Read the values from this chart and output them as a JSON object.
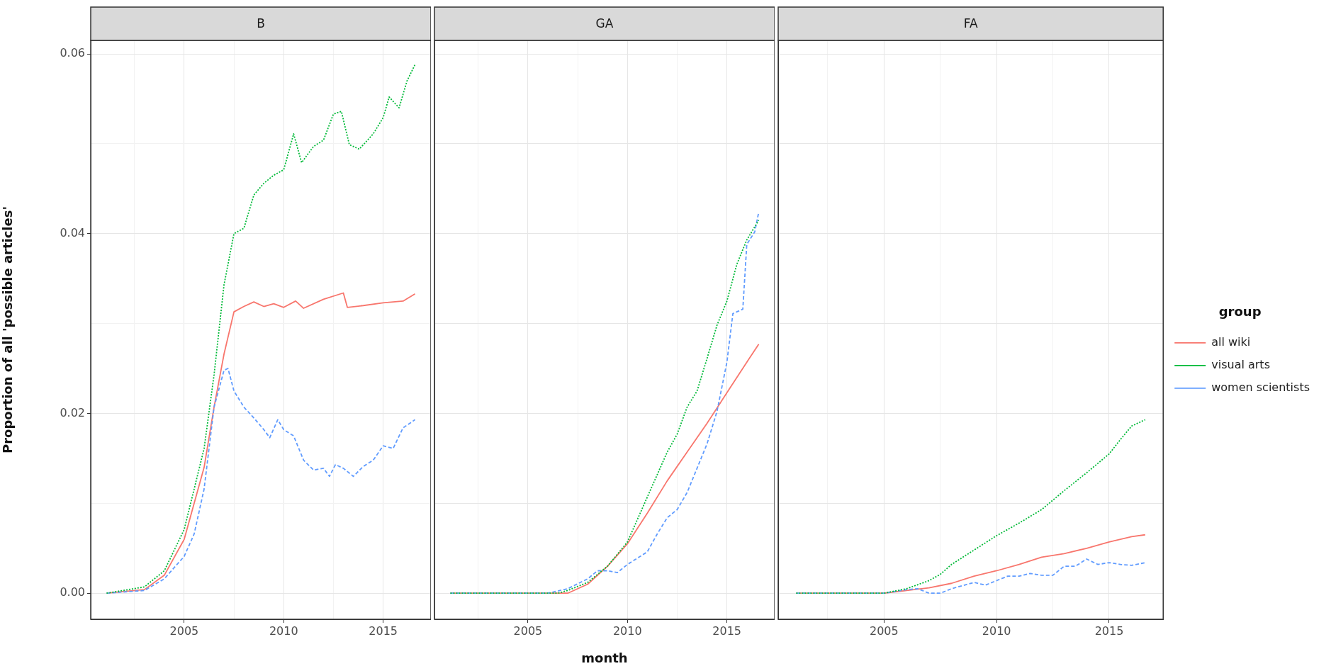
{
  "chart_data": [
    {
      "type": "line",
      "title": "B",
      "ylabel": "Proportion of all 'possible articles'",
      "xlim": [
        2000.3,
        2017.4
      ],
      "ylim": [
        -0.0029,
        0.0615
      ],
      "xticks": [
        {
          "value": 2002.5,
          "label": null
        },
        2005,
        {
          "value": 2007.5,
          "label": null
        },
        2010,
        {
          "value": 2012.5,
          "label": null
        },
        2015
      ],
      "yticks": [
        {
          "value": 0,
          "label": "0.00"
        },
        {
          "value": 0.01,
          "label": null
        },
        {
          "value": 0.02,
          "label": "0.02"
        },
        {
          "value": 0.03,
          "label": null
        },
        {
          "value": 0.04,
          "label": "0.04"
        },
        {
          "value": 0.05,
          "label": null
        },
        {
          "value": 0.06,
          "label": "0.06"
        }
      ],
      "grid": true,
      "marker": "none",
      "legend": false,
      "series": [
        {
          "color": "#f8766d",
          "line_style": "solid",
          "x": [
            2001.1,
            2003,
            2004,
            2005,
            2006,
            2006.5,
            2007,
            2007.5,
            2008,
            2008.5,
            2009,
            2009.5,
            2010,
            2010.6,
            2011,
            2012,
            2013,
            2013.2,
            2014,
            2015,
            2016,
            2016.6
          ],
          "values": [
            0,
            0.0004,
            0.002,
            0.006,
            0.014,
            0.0207,
            0.0266,
            0.0313,
            0.0319,
            0.0324,
            0.0319,
            0.0322,
            0.0318,
            0.0325,
            0.0317,
            0.0327,
            0.0334,
            0.0318,
            0.032,
            0.0323,
            0.0325,
            0.0333
          ]
        },
        {
          "color": "#00ba38",
          "line_style": "dotted",
          "x": [
            2001.1,
            2003,
            2004,
            2005,
            2006,
            2006.5,
            2007,
            2007.5,
            2008,
            2008.5,
            2009,
            2009.5,
            2010,
            2010.5,
            2010.9,
            2011.5,
            2012,
            2012.5,
            2012.9,
            2013.3,
            2013.8,
            2014.5,
            2015,
            2015.3,
            2015.8,
            2016.2,
            2016.6
          ],
          "values": [
            0,
            0.0007,
            0.0025,
            0.0071,
            0.0161,
            0.0243,
            0.0343,
            0.04,
            0.0406,
            0.0443,
            0.0456,
            0.0465,
            0.0471,
            0.0511,
            0.0479,
            0.0497,
            0.0504,
            0.0533,
            0.0536,
            0.0499,
            0.0494,
            0.0511,
            0.0529,
            0.0552,
            0.054,
            0.057,
            0.0588
          ]
        },
        {
          "color": "#619cff",
          "line_style": "dashed",
          "x": [
            2001.1,
            2003,
            2004,
            2005,
            2005.5,
            2006,
            2006.5,
            2007,
            2007.2,
            2007.5,
            2008,
            2008.5,
            2009,
            2009.3,
            2009.7,
            2010,
            2010.5,
            2011,
            2011.5,
            2012,
            2012.3,
            2012.6,
            2013,
            2013.5,
            2014,
            2014.5,
            2015,
            2015.5,
            2016,
            2016.6
          ],
          "values": [
            0,
            0.0003,
            0.0016,
            0.0041,
            0.0066,
            0.0116,
            0.0207,
            0.0248,
            0.025,
            0.0225,
            0.0207,
            0.0195,
            0.0182,
            0.0173,
            0.0193,
            0.0182,
            0.0175,
            0.0148,
            0.0137,
            0.0139,
            0.013,
            0.0143,
            0.0139,
            0.013,
            0.0141,
            0.0148,
            0.0164,
            0.0161,
            0.0184,
            0.0193
          ]
        }
      ]
    },
    {
      "type": "line",
      "title": "GA",
      "xlabel": "month",
      "tick_labels": "x",
      "xlim": [
        2000.3,
        2017.4
      ],
      "ylim": [
        -0.0029,
        0.0615
      ],
      "xticks": [
        {
          "value": 2002.5,
          "label": null
        },
        2005,
        {
          "value": 2007.5,
          "label": null
        },
        2010,
        {
          "value": 2012.5,
          "label": null
        },
        2015
      ],
      "yticks": [
        0,
        0.01,
        0.02,
        0.03,
        0.04,
        0.05,
        0.06
      ],
      "grid": true,
      "marker": "none",
      "legend": false,
      "series": [
        {
          "color": "#f8766d",
          "line_style": "solid",
          "x": [
            2001.1,
            2007,
            2008,
            2009,
            2010,
            2011,
            2012,
            2013,
            2014,
            2015,
            2016,
            2016.6
          ],
          "values": [
            0,
            0,
            0.001,
            0.003,
            0.0055,
            0.0089,
            0.0125,
            0.0157,
            0.0189,
            0.0223,
            0.0257,
            0.0277
          ]
        },
        {
          "color": "#00ba38",
          "line_style": "dotted",
          "x": [
            2001.1,
            2006.5,
            2007,
            2008,
            2009,
            2010,
            2011,
            2012,
            2012.5,
            2013,
            2013.5,
            2014,
            2014.5,
            2015,
            2015.5,
            2016,
            2016.6
          ],
          "values": [
            0,
            0,
            0.0003,
            0.0012,
            0.003,
            0.0057,
            0.0107,
            0.0157,
            0.0177,
            0.0207,
            0.0225,
            0.0261,
            0.0298,
            0.0325,
            0.0366,
            0.0393,
            0.0415
          ]
        },
        {
          "color": "#619cff",
          "line_style": "dashed",
          "x": [
            2001.1,
            2006,
            2007,
            2008,
            2008.5,
            2009,
            2009.5,
            2010,
            2010.5,
            2011,
            2011.5,
            2012,
            2012.5,
            2013,
            2013.5,
            2014,
            2014.5,
            2015,
            2015.3,
            2015.8,
            2016,
            2016.4,
            2016.6
          ],
          "values": [
            0,
            0,
            0.0005,
            0.0016,
            0.0025,
            0.0025,
            0.0023,
            0.0032,
            0.0039,
            0.0046,
            0.0066,
            0.0084,
            0.0093,
            0.0112,
            0.0139,
            0.0166,
            0.0202,
            0.0257,
            0.0311,
            0.0316,
            0.0388,
            0.0402,
            0.0424
          ]
        }
      ]
    },
    {
      "type": "line",
      "title": "FA",
      "legend_title": "group",
      "tick_labels": "x",
      "xlim": [
        2000.3,
        2017.4
      ],
      "ylim": [
        -0.0029,
        0.0615
      ],
      "xticks": [
        {
          "value": 2002.5,
          "label": null
        },
        2005,
        {
          "value": 2007.5,
          "label": null
        },
        2010,
        {
          "value": 2012.5,
          "label": null
        },
        2015
      ],
      "yticks": [
        0,
        0.01,
        0.02,
        0.03,
        0.04,
        0.05,
        0.06
      ],
      "grid": true,
      "marker": "none",
      "legend": "right",
      "series": [
        {
          "name": "all wiki",
          "color": "#f8766d",
          "line_style": "solid",
          "x": [
            2001.1,
            2005,
            2006,
            2007,
            2008,
            2009,
            2010,
            2011,
            2012,
            2013,
            2014,
            2015,
            2016,
            2016.6
          ],
          "values": [
            0,
            0,
            0.0003,
            0.0006,
            0.0011,
            0.0019,
            0.0025,
            0.0032,
            0.004,
            0.0044,
            0.005,
            0.0057,
            0.0063,
            0.0065
          ]
        },
        {
          "name": "visual arts",
          "color": "#00ba38",
          "line_style": "dotted",
          "x": [
            2001.1,
            2005,
            2006,
            2007,
            2007.5,
            2008,
            2009,
            2010,
            2011,
            2012,
            2013,
            2014,
            2015,
            2015.5,
            2016,
            2016.6
          ],
          "values": [
            0,
            0,
            0.0005,
            0.0014,
            0.0021,
            0.0032,
            0.0048,
            0.0064,
            0.0078,
            0.0093,
            0.0114,
            0.0134,
            0.0155,
            0.0171,
            0.0186,
            0.0193
          ]
        },
        {
          "name": "women scientists",
          "color": "#619cff",
          "line_style": "dashed",
          "x": [
            2001.1,
            2005,
            2006,
            2006.5,
            2007,
            2007.5,
            2008,
            2009,
            2009.5,
            2010,
            2010.5,
            2011,
            2011.5,
            2012,
            2012.5,
            2013,
            2013.5,
            2014,
            2014.5,
            2015,
            2015.5,
            2016,
            2016.6
          ],
          "values": [
            0,
            0,
            0.0004,
            0.0005,
            0,
            0,
            0.0005,
            0.0012,
            0.0009,
            0.0014,
            0.0019,
            0.0019,
            0.0022,
            0.002,
            0.002,
            0.003,
            0.003,
            0.0038,
            0.0032,
            0.0034,
            0.0032,
            0.0031,
            0.0034
          ]
        }
      ]
    }
  ]
}
